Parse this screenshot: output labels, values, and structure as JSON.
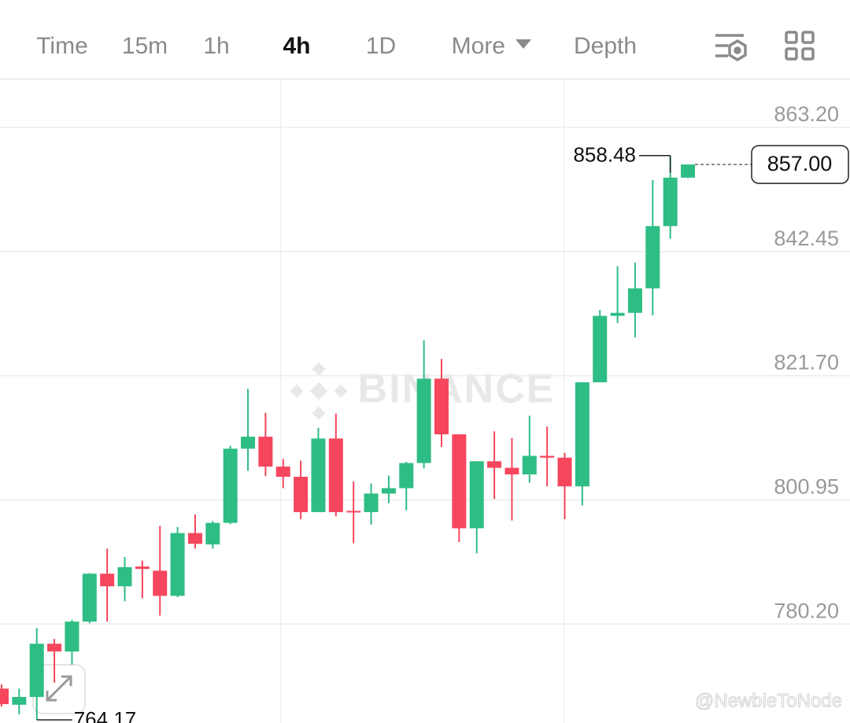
{
  "toolbar": {
    "tabs": [
      "Time",
      "15m",
      "1h",
      "4h",
      "1D",
      "More",
      "Depth"
    ],
    "active": 3
  },
  "watermarks": [
    "BINANCE",
    "@NewbieToNode"
  ],
  "chart_data": {
    "type": "candlestick",
    "up_color": "#2ebd85",
    "down_color": "#f6465d",
    "open": [
      769.4,
      766.7,
      768.0,
      776.9,
      775.6,
      780.6,
      788.6,
      786.5,
      789.8,
      789.1,
      784.9,
      795.4,
      793.5,
      797.1,
      809.5,
      811.5,
      806.5,
      804.8,
      798.9,
      811.2,
      799.1,
      798.9,
      802.0,
      802.9,
      807.1,
      821.2,
      811.9,
      796.2,
      807.4,
      806.3,
      805.2,
      808.3,
      808.0,
      803.2,
      820.6,
      831.7,
      832.2,
      836.3,
      846.7,
      854.8
    ],
    "high": [
      770.1,
      769.4,
      779.5,
      777.7,
      780.9,
      788.7,
      792.8,
      791.4,
      790.8,
      796.6,
      796.4,
      798.5,
      797.4,
      810.0,
      819.5,
      815.5,
      807.8,
      807.5,
      813.0,
      815.4,
      804.0,
      803.7,
      805.0,
      807.3,
      827.6,
      824.5,
      811.9,
      807.4,
      812.4,
      811.3,
      815.0,
      813.2,
      808.8,
      820.6,
      832.7,
      840.0,
      840.6,
      854.4,
      858.48,
      857.0
    ],
    "low": [
      766.4,
      765.1,
      764.17,
      770.4,
      773.4,
      780.3,
      780.6,
      784.0,
      784.5,
      781.6,
      784.7,
      792.8,
      792.8,
      796.9,
      805.8,
      804.9,
      802.9,
      797.7,
      798.9,
      798.2,
      793.7,
      796.8,
      800.4,
      799.2,
      806.2,
      809.8,
      793.9,
      792.0,
      801.1,
      797.5,
      803.8,
      803.2,
      797.7,
      800.0,
      820.6,
      830.5,
      828.1,
      831.8,
      844.6,
      854.7
    ],
    "close": [
      766.8,
      768.0,
      776.9,
      775.6,
      780.6,
      788.6,
      786.5,
      789.7,
      789.4,
      784.9,
      795.4,
      793.6,
      797.1,
      809.5,
      811.5,
      806.5,
      804.8,
      798.9,
      811.2,
      798.9,
      798.9,
      802.0,
      802.9,
      807.1,
      821.2,
      811.9,
      796.2,
      807.4,
      806.3,
      805.2,
      808.3,
      808.0,
      803.2,
      820.6,
      831.7,
      832.2,
      836.3,
      846.7,
      854.8,
      857.0
    ],
    "current_price": {
      "value": 857.0,
      "label": "857.00"
    },
    "ylim": [
      763.65,
      871.21
    ],
    "yticks": [
      {
        "value": 863.2,
        "label": "863.20"
      },
      842.45,
      {
        "value": 821.7,
        "label": "821.70"
      },
      800.95,
      {
        "value": 780.2,
        "label": "780.20"
      }
    ],
    "grid": true
  }
}
